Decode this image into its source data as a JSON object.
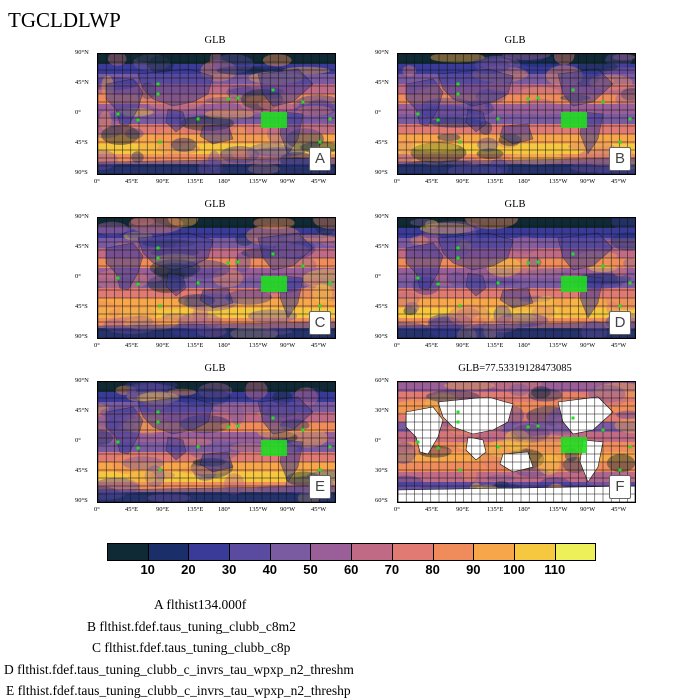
{
  "figure_title": "TGCLDLWP",
  "panels": [
    {
      "id": "A",
      "title": "GLB",
      "letter": "A",
      "lat_labels": [
        "90°N",
        "45°N",
        "0°",
        "45°S",
        "90°S"
      ]
    },
    {
      "id": "B",
      "title": "GLB",
      "letter": "B",
      "lat_labels": [
        "90°N",
        "45°N",
        "0°",
        "45°S",
        "90°S"
      ]
    },
    {
      "id": "C",
      "title": "GLB",
      "letter": "C",
      "lat_labels": [
        "90°N",
        "45°N",
        "0°",
        "45°S",
        "90°S"
      ]
    },
    {
      "id": "D",
      "title": "GLB",
      "letter": "D",
      "lat_labels": [
        "90°N",
        "45°N",
        "0°",
        "45°S",
        "90°S"
      ]
    },
    {
      "id": "E",
      "title": "GLB",
      "letter": "E",
      "lat_labels": [
        "90°N",
        "45°N",
        "0°",
        "45°S",
        "90°S"
      ]
    },
    {
      "id": "F",
      "title": "GLB=77.53319128473085",
      "letter": "F",
      "lat_labels": [
        "60°N",
        "30°N",
        "0°",
        "30°S",
        "60°S"
      ]
    }
  ],
  "lon_labels": [
    "0°",
    "45°E",
    "90°E",
    "135°E",
    "180°",
    "135°W",
    "90°W",
    "45°W"
  ],
  "colorbar": {
    "colors": [
      "#0f2a35",
      "#1a2e6a",
      "#3a3a99",
      "#5a4aa0",
      "#7a5aa0",
      "#9a5f98",
      "#c06a86",
      "#e07a72",
      "#f08c5c",
      "#f7a64a",
      "#f6c840",
      "#eef05a"
    ],
    "labels": [
      "10",
      "20",
      "30",
      "40",
      "50",
      "60",
      "70",
      "80",
      "90",
      "100",
      "110"
    ]
  },
  "legend": [
    {
      "letter": "A",
      "name": "flthist134.000f"
    },
    {
      "letter": "B",
      "name": "flthist.fdef.taus_tuning_clubb_c8m2"
    },
    {
      "letter": "C",
      "name": "flthist.fdef.taus_tuning_clubb_c8p"
    },
    {
      "letter": "D",
      "name": "flthist.fdef.taus_tuning_clubb_c_invrs_tau_wpxp_n2_threshm"
    },
    {
      "letter": "E",
      "name": "flthist.fdef.taus_tuning_clubb_c_invrs_tau_wpxp_n2_threshp"
    }
  ]
}
